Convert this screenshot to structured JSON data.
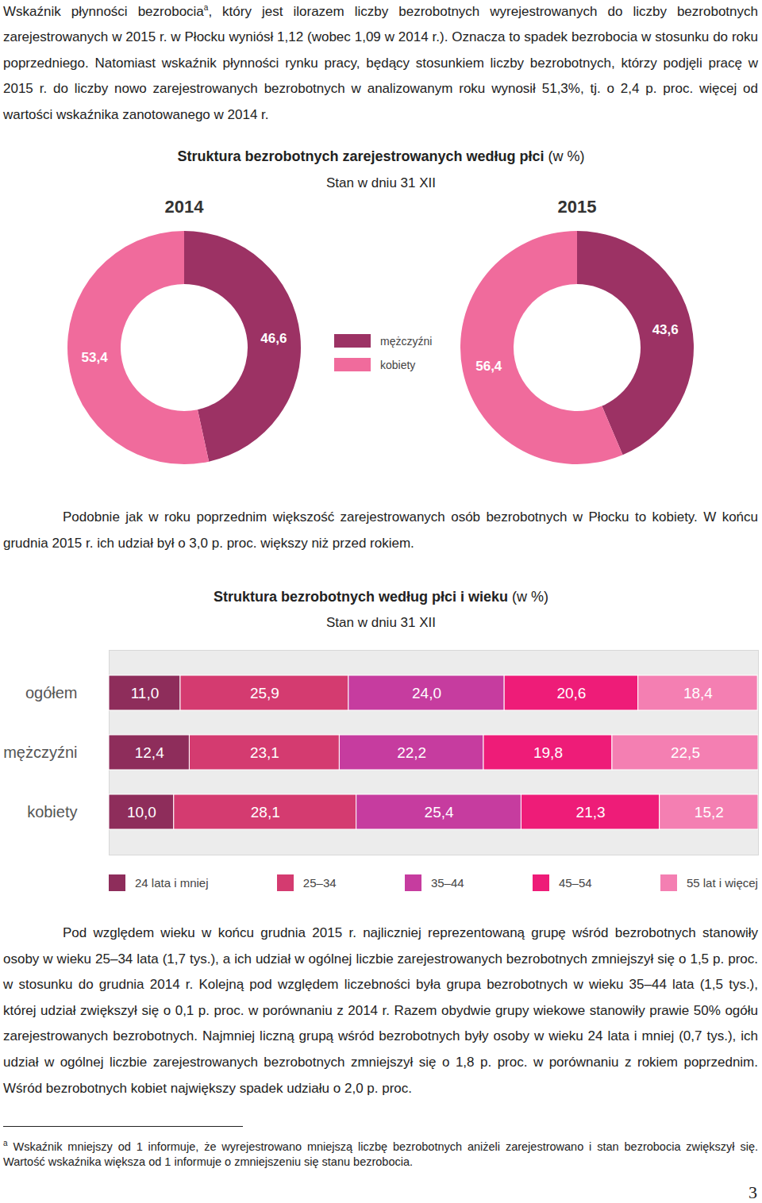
{
  "intro": {
    "before_note": "Wskaźnik płynności bezrobocia",
    "note_mark": "a",
    "after_note": ", który jest ilorazem liczby bezrobotnych wyrejestrowanych do liczby bezrobotnych zarejestrowanych w 2015 r. w Płocku wyniósł 1,12 (wobec 1,09 w 2014 r.). Oznacza to spadek bezrobocia w stosunku do roku poprzedniego. Natomiast wskaźnik płynności rynku pracy, będący stosunkiem liczby bezrobotnych, którzy podjęli pracę w 2015 r. do liczby nowo zarejestrowanych bezrobotnych w analizowanym roku wynosił 51,3%, tj. o 2,4 p. proc. więcej od wartości wskaźnika zanotowanego w 2014 r."
  },
  "chart_data": [
    {
      "type": "donut",
      "title": "Struktura bezrobotnych zarejestrowanych według płci",
      "title_unit": "(w %)",
      "subtitle": "Stan w dniu 31 XII",
      "categories": [
        "mężczyźni",
        "kobiety"
      ],
      "colors": [
        "#9c3264",
        "#f06b9c"
      ],
      "panels": [
        {
          "label": "2014",
          "values": [
            46.6,
            53.4
          ],
          "value_labels": [
            "46,6",
            "53,4"
          ]
        },
        {
          "label": "2015",
          "values": [
            43.6,
            56.4
          ],
          "value_labels": [
            "43,6",
            "56,4"
          ]
        }
      ],
      "data_labels": true,
      "legend": "center"
    },
    {
      "type": "bar",
      "orientation": "horizontal",
      "stacked": true,
      "title": "Struktura bezrobotnych według płci i wieku",
      "title_unit": "(w %)",
      "subtitle": "Stan w dniu 31 XII",
      "categories": [
        "ogółem",
        "mężczyźni",
        "kobiety"
      ],
      "xlim": [
        0,
        100
      ],
      "series": [
        {
          "name": "24 lata i mniej",
          "color": "#8e2d5b",
          "values": [
            11.0,
            12.4,
            10.0
          ],
          "value_labels": [
            "11,0",
            "12,4",
            "10,0"
          ]
        },
        {
          "name": "25–34",
          "color": "#d43b70",
          "values": [
            25.9,
            23.1,
            28.1
          ],
          "value_labels": [
            "25,9",
            "23,1",
            "28,1"
          ]
        },
        {
          "name": "35–44",
          "color": "#c63c9f",
          "values": [
            24.0,
            22.2,
            25.4
          ],
          "value_labels": [
            "24,0",
            "22,2",
            "25,4"
          ]
        },
        {
          "name": "45–54",
          "color": "#ee1c78",
          "values": [
            20.6,
            19.8,
            21.3
          ],
          "value_labels": [
            "20,6",
            "19,8",
            "21,3"
          ]
        },
        {
          "name": "55 lat i więcej",
          "color": "#f47fb2",
          "values": [
            18.4,
            22.5,
            15.2
          ],
          "value_labels": [
            "18,4",
            "22,5",
            "15,2"
          ]
        }
      ],
      "data_labels": true,
      "tick_labels": "y",
      "legend": "bottom"
    }
  ],
  "paragraph_after_donut": "Podobnie jak w roku poprzednim większość zarejestrowanych osób bezrobotnych w Płocku to kobiety. W końcu grudnia 2015 r. ich udział był o 3,0 p. proc. większy niż przed rokiem.",
  "paragraph_after_bar": "Pod względem wieku w końcu grudnia 2015 r. najliczniej reprezentowaną grupę wśród bezrobotnych stanowiły osoby w wieku 25–34 lata (1,7 tys.), a ich udział w ogólnej liczbie zarejestrowanych bezrobotnych zmniejszył się o 1,5 p. proc. w stosunku do grudnia 2014 r. Kolejną pod względem liczebności była grupa bezrobotnych w wieku 35–44 lata (1,5 tys.), której udział zwiększył się o 0,1 p. proc. w porównaniu z 2014 r. Razem obydwie grupy wiekowe stanowiły prawie 50% ogółu zarejestrowanych bezrobotnych. Najmniej liczną grupą wśród bezrobotnych były osoby w wieku 24 lata i mniej (0,7 tys.), ich udział w ogólnej liczbie zarejestrowanych bezrobotnych zmniejszył się o 1,8 p. proc. w porównaniu z rokiem poprzednim. Wśród bezrobotnych kobiet największy spadek udziału o 2,0 p. proc.",
  "footnote": {
    "mark": "a",
    "text": " Wskaźnik mniejszy od 1 informuje, że wyrejestrowano mniejszą liczbę bezrobotnych aniżeli zarejestrowano i stan bezrobocia zwiększył się. Wartość wskaźnika większa od 1 informuje o zmniejszeniu się stanu bezrobocia."
  },
  "page_number": 3
}
